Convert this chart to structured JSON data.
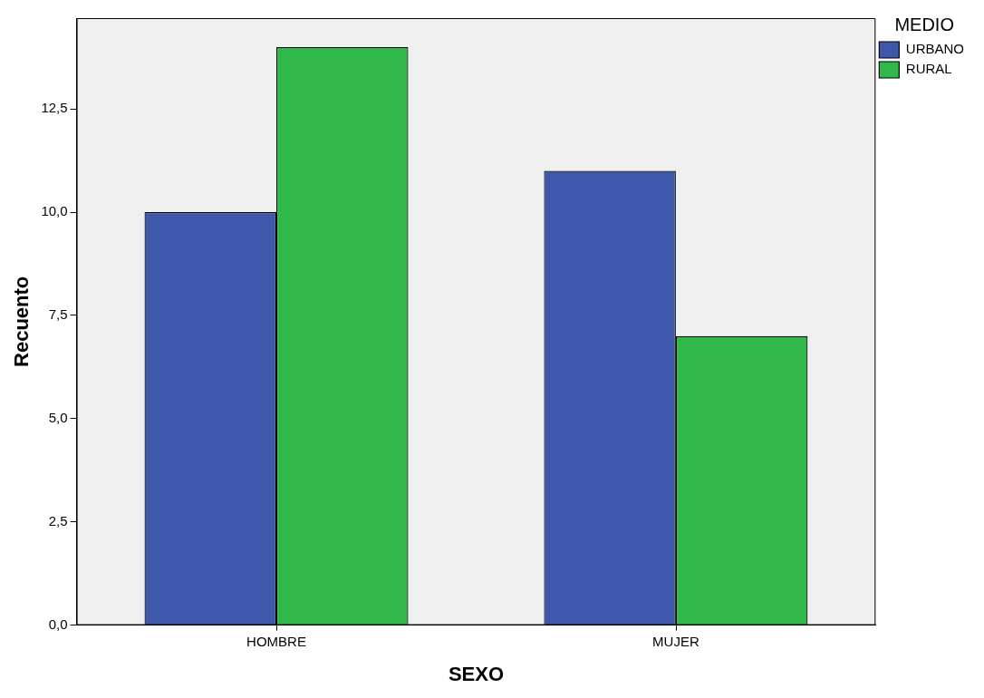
{
  "chart_data": {
    "type": "bar",
    "xlabel": "SEXO",
    "ylabel": "Recuento",
    "legend_title": "MEDIO",
    "categories": [
      "HOMBRE",
      "MUJER"
    ],
    "series": [
      {
        "name": "URBANO",
        "color": "#3f58ab",
        "values": [
          10,
          11
        ]
      },
      {
        "name": "RURAL",
        "color": "#30b84a",
        "values": [
          14,
          7
        ]
      }
    ],
    "ylim": [
      0,
      14.7
    ],
    "yticks": [
      {
        "value": 0,
        "label": "0,0"
      },
      {
        "value": 2.5,
        "label": "2,5"
      },
      {
        "value": 5,
        "label": "5,0"
      },
      {
        "value": 7.5,
        "label": "7,5"
      },
      {
        "value": 10,
        "label": "10,0"
      },
      {
        "value": 12.5,
        "label": "12,5"
      }
    ],
    "grid": false,
    "legend": "top right"
  }
}
